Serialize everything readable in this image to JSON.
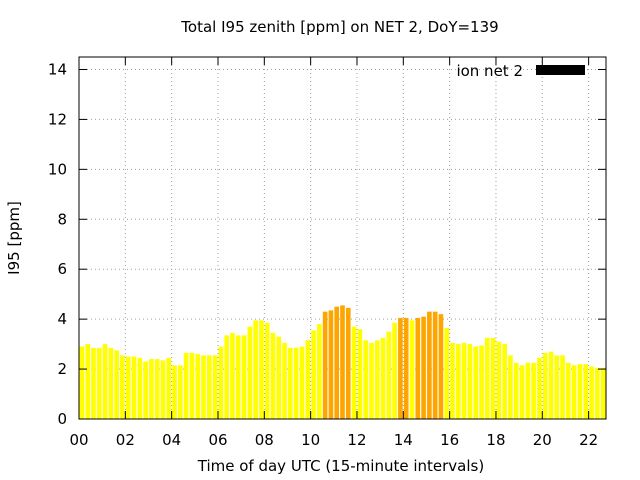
{
  "chart_data": {
    "type": "bar",
    "title": "Total I95 zenith [ppm] on NET 2, DoY=139",
    "xlabel": "Time of day UTC (15-minute intervals)",
    "ylabel": "I95 [ppm]",
    "ylim": [
      0,
      14.5
    ],
    "xlim": [
      0,
      22.75
    ],
    "yticks": [
      "0",
      "2",
      "4",
      "6",
      "8",
      "10",
      "12",
      "14"
    ],
    "xticks": [
      "00",
      "02",
      "04",
      "06",
      "08",
      "10",
      "12",
      "14",
      "16",
      "18",
      "20",
      "22"
    ],
    "grid": true,
    "legend": {
      "label": "ion net 2",
      "position": "top-right",
      "color": "#000000"
    },
    "colors": {
      "low": "#ffff00",
      "high": "#ffa500"
    },
    "interval_hours": 0.25,
    "threshold": 4.0,
    "values": [
      2.9,
      3.0,
      2.85,
      2.85,
      3.0,
      2.85,
      2.75,
      2.55,
      2.5,
      2.5,
      2.45,
      2.3,
      2.4,
      2.4,
      2.35,
      2.45,
      2.15,
      2.15,
      2.65,
      2.65,
      2.6,
      2.55,
      2.55,
      2.55,
      2.9,
      3.35,
      3.45,
      3.35,
      3.35,
      3.7,
      3.95,
      3.95,
      3.85,
      3.45,
      3.3,
      3.05,
      2.85,
      2.85,
      2.9,
      3.15,
      3.55,
      3.8,
      4.3,
      4.35,
      4.5,
      4.55,
      4.45,
      3.7,
      3.6,
      3.15,
      3.05,
      3.15,
      3.25,
      3.5,
      3.85,
      4.05,
      4.05,
      3.95,
      4.05,
      4.1,
      4.3,
      4.3,
      4.2,
      3.65,
      3.05,
      3.0,
      3.05,
      3.0,
      2.9,
      2.95,
      3.25,
      3.25,
      3.1,
      3.0,
      2.55,
      2.25,
      2.15,
      2.25,
      2.25,
      2.45,
      2.65,
      2.7,
      2.55,
      2.55,
      2.25,
      2.15,
      2.2,
      2.2,
      2.1,
      2.05,
      2.05
    ]
  }
}
